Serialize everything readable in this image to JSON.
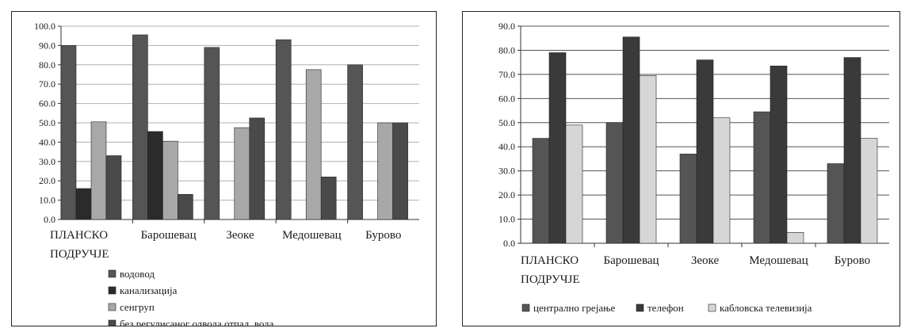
{
  "chart_data": [
    {
      "type": "bar",
      "categories": [
        [
          "ПЛАНСКО",
          "ПОДРУЧЈЕ"
        ],
        [
          "Барошевац"
        ],
        [
          "Зеоке"
        ],
        [
          "Медошевац"
        ],
        [
          "Бурово"
        ]
      ],
      "series": [
        {
          "name": "водовод",
          "values": [
            90.0,
            95.5,
            89.0,
            93.0,
            80.0
          ],
          "color": "#555555"
        },
        {
          "name": "канализација",
          "values": [
            16.0,
            45.5,
            0,
            0,
            0
          ],
          "color": "#2b2b2b"
        },
        {
          "name": "сенгруп",
          "values": [
            50.5,
            40.5,
            47.5,
            77.5,
            50.0
          ],
          "color": "#a8a8a8"
        },
        {
          "name": "без регулисаног одвода отпад. вода",
          "values": [
            33.0,
            13.0,
            52.5,
            22.0,
            50.0
          ],
          "color": "#4a4a4a"
        }
      ],
      "ylim": [
        0,
        100
      ],
      "yticks": [
        "0.0",
        "10.0",
        "20.0",
        "30.0",
        "40.0",
        "50.0",
        "60.0",
        "70.0",
        "80.0",
        "90.0",
        "100.0"
      ],
      "grid": true,
      "legend": "bottom"
    },
    {
      "type": "bar",
      "categories": [
        [
          "ПЛАНСКО",
          "ПОДРУЧЈЕ"
        ],
        [
          "Барошевац"
        ],
        [
          "Зеоке"
        ],
        [
          "Медошевац"
        ],
        [
          "Бурово"
        ]
      ],
      "series": [
        {
          "name": "централно грејање",
          "values": [
            43.5,
            50.0,
            37.0,
            54.5,
            33.0
          ],
          "color": "#555555"
        },
        {
          "name": "телефон",
          "values": [
            79.0,
            85.5,
            76.0,
            73.5,
            77.0
          ],
          "color": "#3a3a3a"
        },
        {
          "name": "кабловска телевизија",
          "values": [
            49.0,
            69.5,
            52.0,
            4.5,
            43.5
          ],
          "color": "#d6d6d6"
        }
      ],
      "ylim": [
        0,
        90
      ],
      "yticks": [
        "0.0",
        "10.0",
        "20.0",
        "30.0",
        "40.0",
        "50.0",
        "60.0",
        "70.0",
        "80.0",
        "90.0"
      ],
      "grid": true,
      "legend": "bottom"
    }
  ]
}
